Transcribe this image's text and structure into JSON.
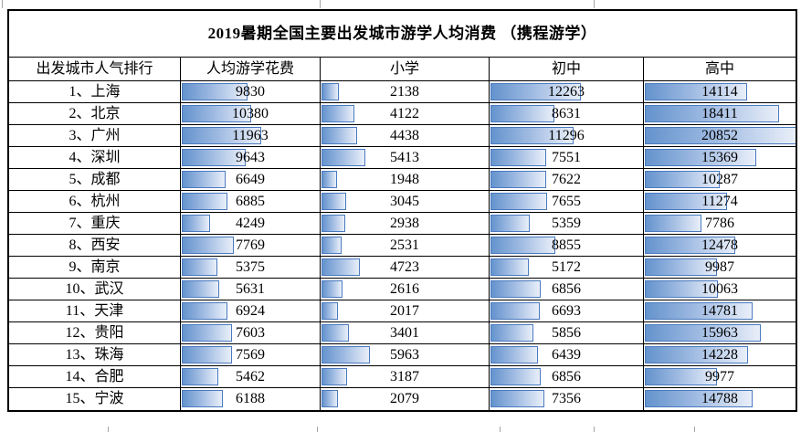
{
  "table": {
    "title": "2019暑期全国主要出发城市游学人均消费 （携程游学）",
    "headers": [
      "出发城市人气排行",
      "人均游学花费",
      "小学",
      "初中",
      "高中"
    ],
    "bar_scale_max": 20852,
    "rows": [
      {
        "city": "1、上海",
        "values": [
          9830,
          2138,
          12263,
          14114
        ]
      },
      {
        "city": "2、北京",
        "values": [
          10380,
          4122,
          8631,
          18411
        ]
      },
      {
        "city": "3、广州",
        "values": [
          11963,
          4438,
          11296,
          20852
        ]
      },
      {
        "city": "4、深圳",
        "values": [
          9643,
          5413,
          7551,
          15369
        ]
      },
      {
        "city": "5、成都",
        "values": [
          6649,
          1948,
          7622,
          10287
        ]
      },
      {
        "city": "6、杭州",
        "values": [
          6885,
          3045,
          7655,
          11274
        ]
      },
      {
        "city": "7、重庆",
        "values": [
          4249,
          2938,
          5359,
          7786
        ]
      },
      {
        "city": "8、西安",
        "values": [
          7769,
          2531,
          8855,
          12478
        ]
      },
      {
        "city": "9、南京",
        "values": [
          5375,
          4723,
          5172,
          9987
        ]
      },
      {
        "city": "10、武汉",
        "values": [
          5631,
          2616,
          6856,
          10063
        ]
      },
      {
        "city": "11、天津",
        "values": [
          6924,
          2017,
          6693,
          14781
        ]
      },
      {
        "city": "12、贵阳",
        "values": [
          7603,
          3401,
          5856,
          15963
        ]
      },
      {
        "city": "13、珠海",
        "values": [
          7569,
          5963,
          6439,
          14228
        ]
      },
      {
        "city": "14、合肥",
        "values": [
          5462,
          3187,
          6856,
          9977
        ]
      },
      {
        "city": "15、宁波",
        "values": [
          6188,
          2079,
          7356,
          14788
        ]
      }
    ]
  },
  "colors": {
    "bar_fill_start": "#6493cd",
    "bar_fill_end": "#e9eff9",
    "bar_border": "#4a7abf",
    "grid_border": "#000000",
    "outer_gridline_stub": "#a6a6a6"
  },
  "chart_data": {
    "type": "table",
    "title": "2019暑期全国主要出发城市游学人均消费 （携程游学）",
    "columns": [
      "出发城市人气排行",
      "人均游学花费",
      "小学",
      "初中",
      "高中"
    ],
    "rows": [
      [
        "1、上海",
        9830,
        2138,
        12263,
        14114
      ],
      [
        "2、北京",
        10380,
        4122,
        8631,
        18411
      ],
      [
        "3、广州",
        11963,
        4438,
        11296,
        20852
      ],
      [
        "4、深圳",
        9643,
        5413,
        7551,
        15369
      ],
      [
        "5、成都",
        6649,
        1948,
        7622,
        10287
      ],
      [
        "6、杭州",
        6885,
        3045,
        7655,
        11274
      ],
      [
        "7、重庆",
        4249,
        2938,
        5359,
        7786
      ],
      [
        "8、西安",
        7769,
        2531,
        8855,
        12478
      ],
      [
        "9、南京",
        5375,
        4723,
        5172,
        9987
      ],
      [
        "10、武汉",
        5631,
        2616,
        6856,
        10063
      ],
      [
        "11、天津",
        6924,
        2017,
        6693,
        14781
      ],
      [
        "12、贵阳",
        7603,
        3401,
        5856,
        15963
      ],
      [
        "13、珠海",
        7569,
        5963,
        6439,
        14228
      ],
      [
        "14、合肥",
        5462,
        3187,
        6856,
        9977
      ],
      [
        "15、宁波",
        6188,
        2079,
        7356,
        14788
      ]
    ],
    "layout_hints": {
      "data_bars": "every numeric cell has a blue gradient data bar, bar length proportional to value",
      "bar_scale": "bar width fraction = value / 20852 (global max)",
      "legend": "none",
      "grid": "black 1px cell borders, 2px outer border"
    }
  }
}
